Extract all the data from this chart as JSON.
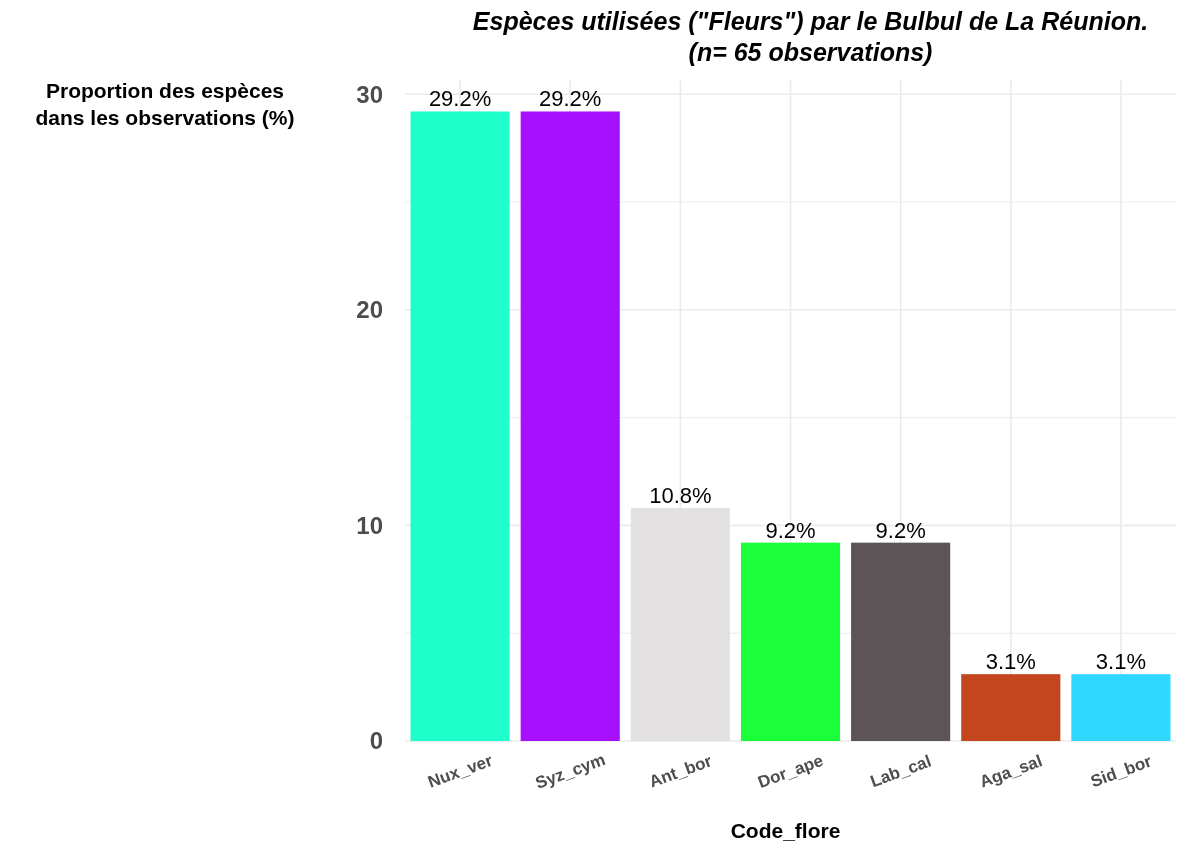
{
  "chart_data": {
    "type": "bar",
    "title": "Espèces utilisées (\"Fleurs\") par le Bulbul de La Réunion.\n(n= 65 observations)",
    "xlabel": "Code_flore",
    "ylabel": "Proportion des espèces\ndans les observations (%)",
    "categories": [
      "Nux_ver",
      "Syz_cym",
      "Ant_bor",
      "Dor_ape",
      "Lab_cal",
      "Aga_sal",
      "Sid_bor"
    ],
    "values": [
      29.2,
      29.2,
      10.8,
      9.2,
      9.2,
      3.1,
      3.1
    ],
    "colors": [
      "#1effcc",
      "#a710fc",
      "#e2e0e1",
      "#1aff3a",
      "#5c5457",
      "#c4461e",
      "#2ed8ff"
    ],
    "value_labels": [
      "29.2%",
      "29.2%",
      "10.8%",
      "9.2%",
      "9.2%",
      "3.1%",
      "3.1%"
    ],
    "ylim": [
      0,
      30.66
    ],
    "yticks": [
      0,
      {
        "value": 5,
        "label": null
      },
      10,
      {
        "value": 15,
        "label": null
      },
      20,
      {
        "value": 25,
        "label": null
      },
      30
    ],
    "grid": true
  }
}
